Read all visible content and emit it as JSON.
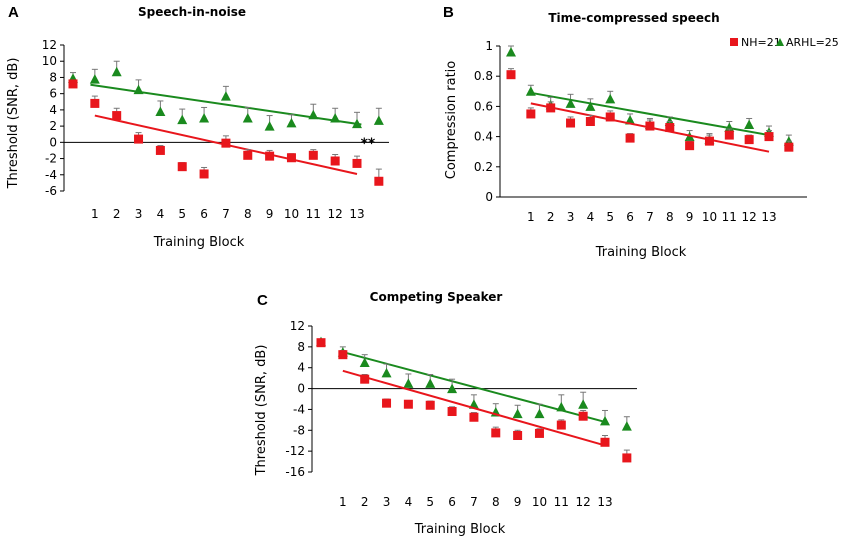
{
  "colors": {
    "nh": "#e8161c",
    "arhl": "#1a8a1e",
    "axis": "#000000",
    "error": "#777777"
  },
  "legend": {
    "nh_label": "NH=21",
    "arhl_label": "ARHL=25",
    "nh_marker": "square",
    "arhl_marker": "triangle",
    "placement": "top-right of panel B"
  },
  "chart_data": [
    {
      "id": "A",
      "type": "scatter",
      "letter": "A",
      "title": "Speech-in-noise",
      "xlabel": "Training Block",
      "ylabel": "Threshold (SNR, dB)",
      "ylim": [
        -6,
        12
      ],
      "yticks": [
        "12",
        "10",
        "8",
        "6",
        "4",
        "2",
        "0",
        "-2",
        "-4",
        "-6"
      ],
      "xticks": [
        "1",
        "2",
        "3",
        "4",
        "5",
        "6",
        "7",
        "8",
        "9",
        "10",
        "11",
        "12",
        "13"
      ],
      "series": [
        {
          "name": "ARHL=25",
          "x": [
            0,
            1,
            2,
            3,
            4,
            5,
            6,
            7,
            8,
            9,
            10,
            11,
            12,
            13,
            14
          ],
          "values": [
            7.9,
            7.8,
            8.7,
            6.5,
            3.8,
            2.8,
            3.0,
            5.7,
            3.0,
            2.0,
            2.4,
            3.4,
            3.0,
            2.3,
            2.7
          ],
          "errors": [
            0.7,
            1.2,
            1.3,
            1.2,
            1.3,
            1.3,
            1.3,
            1.2,
            1.3,
            1.3,
            1.0,
            1.3,
            1.2,
            1.4,
            1.5
          ],
          "trend": [
            0.8,
            13.2,
            7.1,
            2.2
          ]
        },
        {
          "name": "NH=21",
          "x": [
            0,
            1,
            2,
            3,
            4,
            5,
            6,
            7,
            8,
            9,
            10,
            11,
            12,
            13,
            14
          ],
          "values": [
            7.2,
            4.8,
            3.3,
            0.4,
            -1.0,
            -3.0,
            -3.9,
            -0.1,
            -1.6,
            -1.7,
            -1.9,
            -1.6,
            -2.3,
            -2.6,
            -4.8
          ],
          "errors": [
            0.4,
            0.9,
            0.9,
            0.8,
            0.6,
            0.5,
            0.8,
            0.9,
            0.7,
            0.7,
            0.5,
            0.7,
            0.8,
            0.9,
            1.5
          ],
          "trend": [
            1.0,
            13.0,
            3.3,
            -3.9
          ]
        }
      ],
      "annotation": {
        "text": "**",
        "at_x": 13.5,
        "at_y": -0.7
      }
    },
    {
      "id": "B",
      "type": "scatter",
      "letter": "B",
      "title": "Time-compressed speech",
      "xlabel": "Training Block",
      "ylabel": "Compression ratio",
      "ylim": [
        0,
        1
      ],
      "yticks": [
        "1",
        "0.8",
        "0.6",
        "0.4",
        "0.2",
        "0"
      ],
      "xticks": [
        "1",
        "2",
        "3",
        "4",
        "5",
        "6",
        "7",
        "8",
        "9",
        "10",
        "11",
        "12",
        "13"
      ],
      "series": [
        {
          "name": "ARHL=25",
          "x": [
            0,
            1,
            2,
            3,
            4,
            5,
            6,
            7,
            8,
            9,
            10,
            11,
            12,
            13,
            14
          ],
          "values": [
            0.96,
            0.7,
            0.61,
            0.62,
            0.6,
            0.65,
            0.51,
            0.48,
            0.5,
            0.4,
            0.38,
            0.46,
            0.48,
            0.43,
            0.37
          ],
          "errors": [
            0.04,
            0.04,
            0.05,
            0.06,
            0.05,
            0.05,
            0.04,
            0.04,
            0.03,
            0.04,
            0.04,
            0.04,
            0.04,
            0.04,
            0.04
          ],
          "trend": [
            1.0,
            13.0,
            0.69,
            0.41
          ]
        },
        {
          "name": "NH=21",
          "x": [
            0,
            1,
            2,
            3,
            4,
            5,
            6,
            7,
            8,
            9,
            10,
            11,
            12,
            13,
            14
          ],
          "values": [
            0.81,
            0.55,
            0.59,
            0.49,
            0.5,
            0.53,
            0.39,
            0.47,
            0.46,
            0.34,
            0.37,
            0.41,
            0.38,
            0.4,
            0.33
          ],
          "errors": [
            0.04,
            0.04,
            0.04,
            0.04,
            0.04,
            0.04,
            0.03,
            0.04,
            0.04,
            0.03,
            0.04,
            0.04,
            0.03,
            0.04,
            0.04
          ],
          "trend": [
            1.0,
            13.0,
            0.62,
            0.3
          ]
        }
      ]
    },
    {
      "id": "C",
      "type": "scatter",
      "letter": "C",
      "title": "Competing Speaker",
      "xlabel": "Training Block",
      "ylabel": "Threshold (SNR, dB)",
      "ylim": [
        -16,
        12
      ],
      "yticks": [
        "12",
        "8",
        "4",
        "0",
        "-4",
        "-8",
        "-12",
        "-16"
      ],
      "xticks": [
        "1",
        "2",
        "3",
        "4",
        "5",
        "6",
        "7",
        "8",
        "9",
        "10",
        "11",
        "12",
        "13"
      ],
      "series": [
        {
          "name": "ARHL=25",
          "x": [
            0,
            1,
            2,
            3,
            4,
            5,
            6,
            7,
            8,
            9,
            10,
            11,
            12,
            13,
            14
          ],
          "values": [
            9.0,
            7.0,
            5.0,
            3.0,
            1.0,
            1.0,
            0.0,
            -3.0,
            -4.5,
            -4.8,
            -4.8,
            -3.5,
            -3.0,
            -6.2,
            -7.2
          ],
          "errors": [
            0.5,
            1.0,
            1.5,
            1.7,
            1.8,
            1.7,
            1.8,
            1.8,
            1.6,
            1.6,
            1.8,
            2.3,
            2.3,
            2.0,
            1.8
          ],
          "trend": [
            1.0,
            13.0,
            7.0,
            -6.4
          ]
        },
        {
          "name": "NH=21",
          "x": [
            0,
            1,
            2,
            3,
            4,
            5,
            6,
            7,
            8,
            9,
            10,
            11,
            12,
            13,
            14
          ],
          "values": [
            8.8,
            6.5,
            1.8,
            -2.8,
            -3.0,
            -3.2,
            -4.4,
            -5.5,
            -8.5,
            -9.0,
            -8.6,
            -7.0,
            -5.3,
            -10.3,
            -13.3
          ],
          "errors": [
            0.6,
            0.8,
            0.9,
            0.8,
            0.5,
            0.8,
            0.9,
            0.9,
            1.1,
            1.0,
            0.9,
            1.0,
            1.1,
            1.3,
            1.5
          ],
          "trend": [
            1.0,
            13.0,
            3.4,
            -10.9
          ]
        }
      ]
    }
  ]
}
